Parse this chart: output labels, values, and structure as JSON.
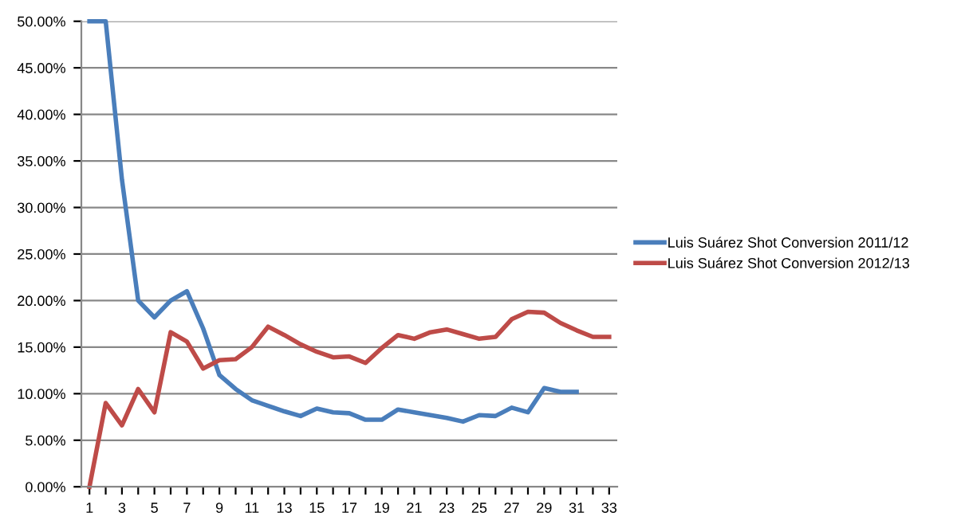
{
  "chart_data": {
    "type": "line",
    "categories": [
      "1",
      null,
      "3",
      null,
      "5",
      null,
      "7",
      null,
      "9",
      null,
      "11",
      null,
      "13",
      null,
      "15",
      null,
      "17",
      null,
      "19",
      null,
      "21",
      null,
      "23",
      null,
      "25",
      null,
      "27",
      null,
      "29",
      null,
      "31",
      null,
      "33"
    ],
    "series": [
      {
        "name": "Luis Suárez Shot Conversion 2011/12",
        "color": "#4a7ebb",
        "values": [
          50,
          50,
          33,
          20,
          18.2,
          20,
          21,
          17,
          12,
          10.5,
          9.3,
          8.7,
          8.1,
          7.6,
          8.4,
          8.0,
          7.9,
          7.2,
          7.2,
          8.3,
          8.0,
          7.7,
          7.4,
          7.0,
          7.7,
          7.6,
          8.5,
          8.0,
          10.6,
          10.2,
          10.2,
          null,
          null
        ]
      },
      {
        "name": "Luis Suárez Shot Conversion 2012/13",
        "color": "#be4b48",
        "values": [
          0,
          9.0,
          6.6,
          10.5,
          8.0,
          16.6,
          15.6,
          12.7,
          13.6,
          13.7,
          15.0,
          17.2,
          16.3,
          15.3,
          14.5,
          13.9,
          14.0,
          13.3,
          14.9,
          16.3,
          15.9,
          16.6,
          16.9,
          16.4,
          15.9,
          16.1,
          18.0,
          18.8,
          18.7,
          17.6,
          16.8,
          16.1,
          16.1
        ]
      }
    ],
    "ylim": [
      0,
      50
    ],
    "yticks": [
      {
        "value": 0,
        "label": "0.00%"
      },
      {
        "value": 5,
        "label": "5.00%"
      },
      {
        "value": 10,
        "label": "10.00%"
      },
      {
        "value": 15,
        "label": "15.00%"
      },
      {
        "value": 20,
        "label": "20.00%"
      },
      {
        "value": 25,
        "label": "25.00%"
      },
      {
        "value": 30,
        "label": "30.00%"
      },
      {
        "value": 35,
        "label": "35.00%"
      },
      {
        "value": 40,
        "label": "40.00%"
      },
      {
        "value": 45,
        "label": "45.00%"
      },
      {
        "value": 50,
        "label": "50.00%"
      }
    ],
    "grid": "y",
    "legend": "right",
    "marker": "none",
    "line_style": "solid"
  }
}
